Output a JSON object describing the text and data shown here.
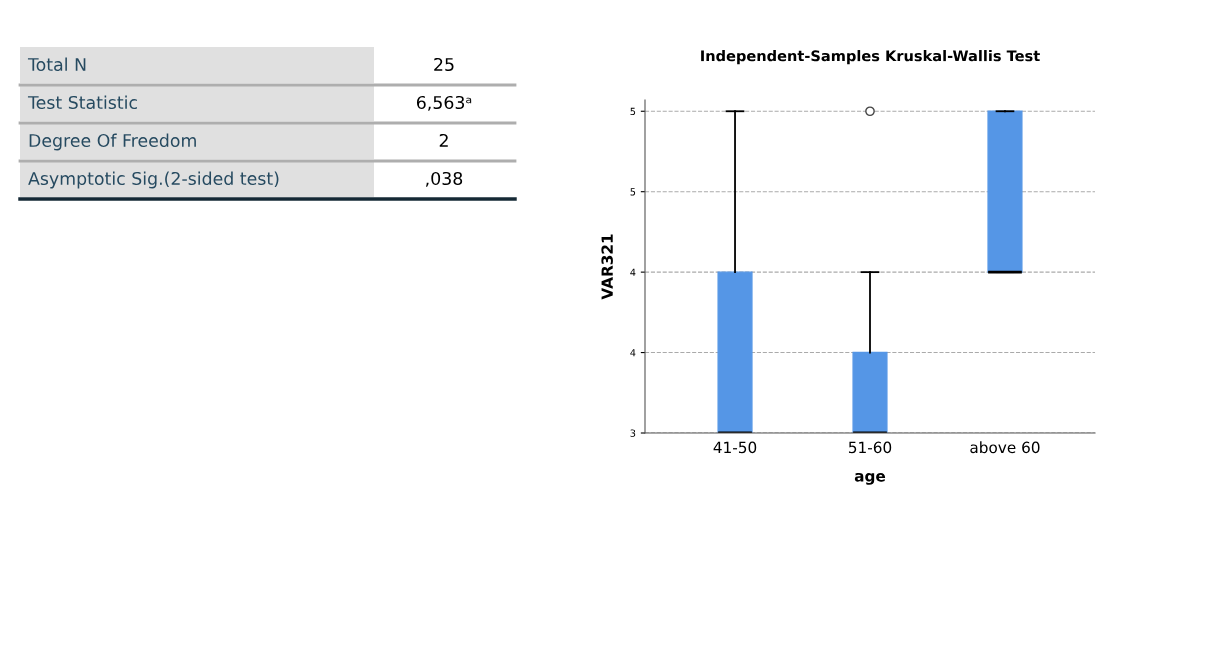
{
  "chart_data": [
    {
      "type": "other",
      "annotations": [
        "Total N",
        "25",
        "Test Statistic",
        "6,563ᵃ",
        "Degree Of Freedom",
        "2",
        "Asymptotic Sig.(2-sided test)",
        ",038"
      ]
    },
    {
      "type": "box",
      "title": "Independent-Samples Kruskal-Wallis Test",
      "xlabel": "age",
      "ylabel": "VAR321",
      "categories": [
        "41-50",
        "51-60",
        "above 60"
      ],
      "color": "#5596e6",
      "boxes": [
        {
          "low": 3,
          "q1": 3,
          "median": 3,
          "q3": 4,
          "high": 5
        },
        {
          "low": 3,
          "q1": 3,
          "median": 3,
          "q3": 3.5,
          "high": 4,
          "outliers": [
            5
          ]
        },
        {
          "low": 4,
          "q1": 4,
          "median": 4,
          "q3": 5,
          "high": 5
        }
      ],
      "ylim": [
        3,
        5.07
      ],
      "yticks": [
        3,
        {
          "value": 3.5,
          "label": "4"
        },
        4,
        {
          "value": 4.5,
          "label": "5"
        },
        5
      ],
      "grid": "y"
    }
  ]
}
